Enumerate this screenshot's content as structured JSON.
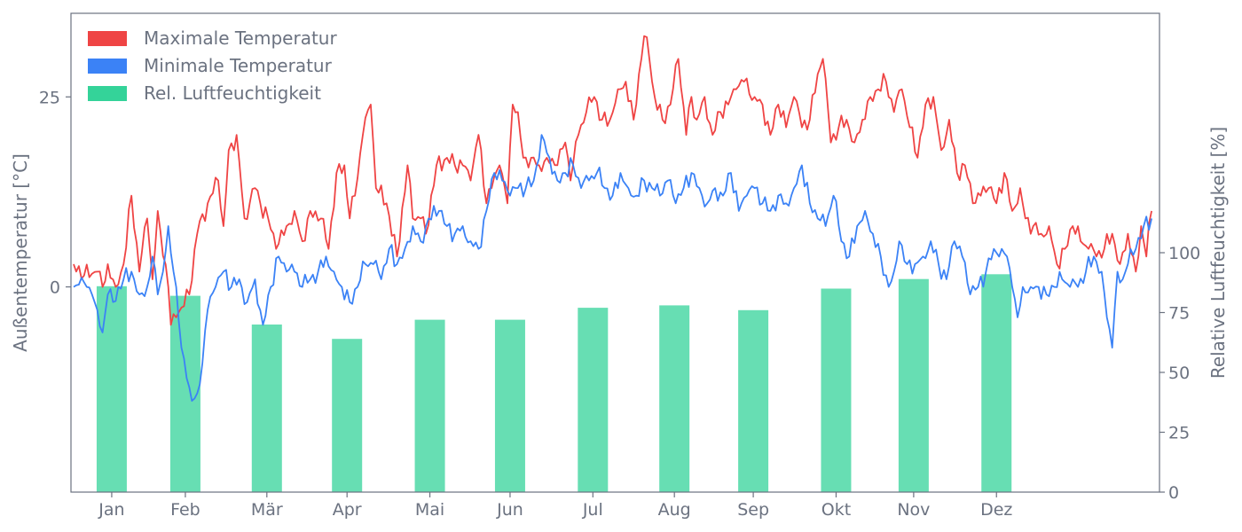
{
  "chart_data": {
    "type": "line+bar",
    "title": "",
    "xlabel": "",
    "ylabel_left": "Außentemperatur [°C]",
    "ylabel_right": "Relative Luftfeuchtigkeit [%]",
    "left_axis": {
      "ylim": [
        -27,
        36
      ],
      "ticks": [
        0,
        25
      ]
    },
    "right_axis": {
      "ylim": [
        0,
        200
      ],
      "ticks": [
        0,
        25,
        50,
        75,
        100
      ]
    },
    "months": [
      "Jan",
      "Feb",
      "Mär",
      "Apr",
      "Mai",
      "Jun",
      "Jul",
      "Aug",
      "Sep",
      "Okt",
      "Nov",
      "Dez"
    ],
    "grid": false,
    "legend": {
      "placement": "top-left",
      "entries": [
        {
          "label": "Maximale Temperatur",
          "color": "#ef4444"
        },
        {
          "label": "Minimale Temperatur",
          "color": "#3b82f6"
        },
        {
          "label": "Rel. Luftfeuchtigkeit",
          "color": "#34d399"
        }
      ]
    },
    "series": [
      {
        "name": "Maximale Temperatur",
        "axis": "left",
        "color": "#ef4444",
        "anchors": [
          [
            1,
            3
          ],
          [
            5,
            1.5
          ],
          [
            10,
            2
          ],
          [
            12,
            0
          ],
          [
            14,
            3
          ],
          [
            17,
            0
          ],
          [
            20,
            3
          ],
          [
            23,
            12
          ],
          [
            26,
            2
          ],
          [
            29,
            9
          ],
          [
            31,
            1
          ],
          [
            33,
            10
          ],
          [
            37,
            0
          ],
          [
            38,
            -5
          ],
          [
            40,
            -4
          ],
          [
            45,
            -1
          ],
          [
            48,
            7
          ],
          [
            52,
            11
          ],
          [
            56,
            14
          ],
          [
            58,
            8
          ],
          [
            60,
            18
          ],
          [
            63,
            20
          ],
          [
            66,
            9
          ],
          [
            68,
            11
          ],
          [
            70,
            13
          ],
          [
            72,
            11
          ],
          [
            75,
            9
          ],
          [
            78,
            5
          ],
          [
            82,
            8
          ],
          [
            85,
            10
          ],
          [
            88,
            6
          ],
          [
            91,
            10
          ],
          [
            95,
            9
          ],
          [
            98,
            5
          ],
          [
            101,
            15
          ],
          [
            104,
            16
          ],
          [
            106,
            9
          ],
          [
            108,
            12
          ],
          [
            111,
            20
          ],
          [
            114,
            24
          ],
          [
            116,
            13
          ],
          [
            120,
            11
          ],
          [
            124,
            4
          ],
          [
            128,
            16
          ],
          [
            130,
            9
          ],
          [
            133,
            9
          ],
          [
            135,
            7
          ],
          [
            139,
            16
          ],
          [
            143,
            17
          ],
          [
            146,
            16
          ],
          [
            149,
            16
          ],
          [
            152,
            14
          ],
          [
            155,
            20
          ],
          [
            158,
            11
          ],
          [
            160,
            13
          ],
          [
            163,
            16
          ],
          [
            166,
            11
          ],
          [
            168,
            24
          ],
          [
            170,
            23
          ],
          [
            172,
            17
          ],
          [
            175,
            17
          ],
          [
            178,
            16
          ],
          [
            181,
            17
          ],
          [
            185,
            16
          ],
          [
            188,
            19
          ],
          [
            190,
            14
          ],
          [
            193,
            20
          ],
          [
            196,
            23
          ],
          [
            199,
            25
          ],
          [
            202,
            22
          ],
          [
            205,
            22
          ],
          [
            208,
            26
          ],
          [
            211,
            27
          ],
          [
            214,
            22
          ],
          [
            216,
            28
          ],
          [
            218,
            33
          ],
          [
            220,
            30
          ],
          [
            222,
            25
          ],
          [
            225,
            22
          ],
          [
            228,
            24
          ],
          [
            231,
            30
          ],
          [
            234,
            20
          ],
          [
            236,
            25
          ],
          [
            238,
            22
          ],
          [
            241,
            25
          ],
          [
            244,
            20
          ],
          [
            247,
            23
          ],
          [
            250,
            24
          ],
          [
            253,
            26
          ],
          [
            256,
            27
          ],
          [
            260,
            25
          ],
          [
            263,
            24
          ],
          [
            266,
            20
          ],
          [
            269,
            24
          ],
          [
            272,
            21
          ],
          [
            275,
            25
          ],
          [
            278,
            21
          ],
          [
            281,
            22
          ],
          [
            284,
            28
          ],
          [
            286,
            30
          ],
          [
            289,
            19
          ],
          [
            292,
            21
          ],
          [
            295,
            22
          ],
          [
            298,
            19
          ],
          [
            301,
            22
          ],
          [
            304,
            25
          ],
          [
            307,
            26
          ],
          [
            310,
            27
          ],
          [
            313,
            23
          ],
          [
            316,
            26
          ],
          [
            319,
            21
          ],
          [
            322,
            17
          ],
          [
            325,
            24
          ],
          [
            328,
            25
          ],
          [
            331,
            18
          ],
          [
            334,
            22
          ],
          [
            337,
            15
          ],
          [
            340,
            16
          ],
          [
            343,
            11
          ],
          [
            346,
            12
          ],
          [
            349,
            13
          ],
          [
            352,
            11
          ],
          [
            355,
            15
          ],
          [
            358,
            10
          ],
          [
            361,
            13
          ],
          [
            363,
            9
          ],
          [
            366,
            8
          ],
          [
            369,
            7
          ],
          [
            372,
            8
          ],
          [
            375,
            3
          ],
          [
            378,
            5
          ],
          [
            381,
            8
          ],
          [
            384,
            6
          ],
          [
            387,
            5
          ],
          [
            390,
            4
          ],
          [
            393,
            5
          ],
          [
            396,
            7
          ],
          [
            399,
            3
          ],
          [
            402,
            7
          ],
          [
            405,
            2
          ],
          [
            407,
            8
          ],
          [
            409,
            4
          ],
          [
            411,
            10
          ]
        ]
      },
      {
        "name": "Minimale Temperatur",
        "axis": "left",
        "color": "#3b82f6",
        "anchors": [
          [
            1,
            0
          ],
          [
            3,
            0.3
          ],
          [
            6,
            0
          ],
          [
            8,
            -1
          ],
          [
            10,
            -3
          ],
          [
            12,
            -6
          ],
          [
            14,
            -1
          ],
          [
            16,
            -2
          ],
          [
            18,
            0
          ],
          [
            20,
            1
          ],
          [
            23,
            2
          ],
          [
            26,
            -1
          ],
          [
            29,
            0
          ],
          [
            31,
            4
          ],
          [
            33,
            -1
          ],
          [
            35,
            2
          ],
          [
            37,
            8
          ],
          [
            39,
            2
          ],
          [
            40,
            0
          ],
          [
            42,
            -8
          ],
          [
            44,
            -12
          ],
          [
            46,
            -15
          ],
          [
            48,
            -14
          ],
          [
            50,
            -10
          ],
          [
            52,
            -3
          ],
          [
            55,
            0
          ],
          [
            58,
            2
          ],
          [
            61,
            0
          ],
          [
            64,
            1
          ],
          [
            67,
            -2
          ],
          [
            70,
            1
          ],
          [
            73,
            -5
          ],
          [
            76,
            0
          ],
          [
            79,
            4
          ],
          [
            82,
            2
          ],
          [
            85,
            2
          ],
          [
            88,
            0
          ],
          [
            91,
            1
          ],
          [
            94,
            2
          ],
          [
            97,
            4
          ],
          [
            100,
            2
          ],
          [
            103,
            0
          ],
          [
            106,
            -2
          ],
          [
            109,
            0
          ],
          [
            112,
            3
          ],
          [
            115,
            3
          ],
          [
            118,
            1
          ],
          [
            121,
            5
          ],
          [
            124,
            3
          ],
          [
            127,
            5
          ],
          [
            130,
            8
          ],
          [
            133,
            6
          ],
          [
            136,
            9
          ],
          [
            140,
            10
          ],
          [
            143,
            8
          ],
          [
            146,
            7
          ],
          [
            149,
            8
          ],
          [
            152,
            6
          ],
          [
            155,
            5
          ],
          [
            158,
            10
          ],
          [
            161,
            15
          ],
          [
            164,
            14
          ],
          [
            167,
            12
          ],
          [
            170,
            13
          ],
          [
            173,
            13
          ],
          [
            176,
            14
          ],
          [
            179,
            20
          ],
          [
            182,
            17
          ],
          [
            185,
            14
          ],
          [
            188,
            15
          ],
          [
            191,
            16
          ],
          [
            194,
            13
          ],
          [
            197,
            14
          ],
          [
            200,
            15
          ],
          [
            203,
            13
          ],
          [
            206,
            12
          ],
          [
            209,
            15
          ],
          [
            212,
            13
          ],
          [
            215,
            12
          ],
          [
            218,
            14
          ],
          [
            221,
            13
          ],
          [
            224,
            12
          ],
          [
            227,
            14
          ],
          [
            230,
            11
          ],
          [
            233,
            13
          ],
          [
            236,
            15
          ],
          [
            239,
            13
          ],
          [
            242,
            11
          ],
          [
            245,
            13
          ],
          [
            248,
            12
          ],
          [
            251,
            15
          ],
          [
            254,
            10
          ],
          [
            257,
            12
          ],
          [
            260,
            13
          ],
          [
            263,
            11
          ],
          [
            266,
            10
          ],
          [
            269,
            12
          ],
          [
            272,
            11
          ],
          [
            275,
            13
          ],
          [
            278,
            16
          ],
          [
            281,
            11
          ],
          [
            284,
            9
          ],
          [
            287,
            8
          ],
          [
            290,
            12
          ],
          [
            293,
            6
          ],
          [
            296,
            4
          ],
          [
            299,
            8
          ],
          [
            302,
            10
          ],
          [
            305,
            7
          ],
          [
            308,
            4
          ],
          [
            311,
            0
          ],
          [
            313,
            2
          ],
          [
            315,
            6
          ],
          [
            318,
            3
          ],
          [
            321,
            3
          ],
          [
            324,
            4
          ],
          [
            327,
            6
          ],
          [
            330,
            3
          ],
          [
            333,
            1
          ],
          [
            336,
            6
          ],
          [
            339,
            4
          ],
          [
            342,
            -1
          ],
          [
            345,
            0
          ],
          [
            348,
            2
          ],
          [
            351,
            5
          ],
          [
            354,
            5
          ],
          [
            356,
            4
          ],
          [
            358,
            0
          ],
          [
            360,
            -4
          ],
          [
            362,
            0
          ],
          [
            365,
            0
          ],
          [
            368,
            0
          ],
          [
            371,
            -1
          ],
          [
            374,
            0
          ],
          [
            377,
            1
          ],
          [
            380,
            0
          ],
          [
            383,
            0
          ],
          [
            386,
            2
          ],
          [
            389,
            4
          ],
          [
            392,
            2
          ],
          [
            394,
            -4
          ],
          [
            396,
            -8
          ],
          [
            398,
            2
          ],
          [
            400,
            1
          ],
          [
            402,
            3
          ],
          [
            405,
            5
          ],
          [
            408,
            8
          ],
          [
            411,
            9
          ]
        ]
      },
      {
        "name": "Rel. Luftfeuchtigkeit",
        "axis": "right",
        "color": "#34d399",
        "values": [
          86,
          82,
          70,
          64,
          72,
          72,
          77,
          78,
          76,
          85,
          89,
          91
        ]
      }
    ]
  }
}
